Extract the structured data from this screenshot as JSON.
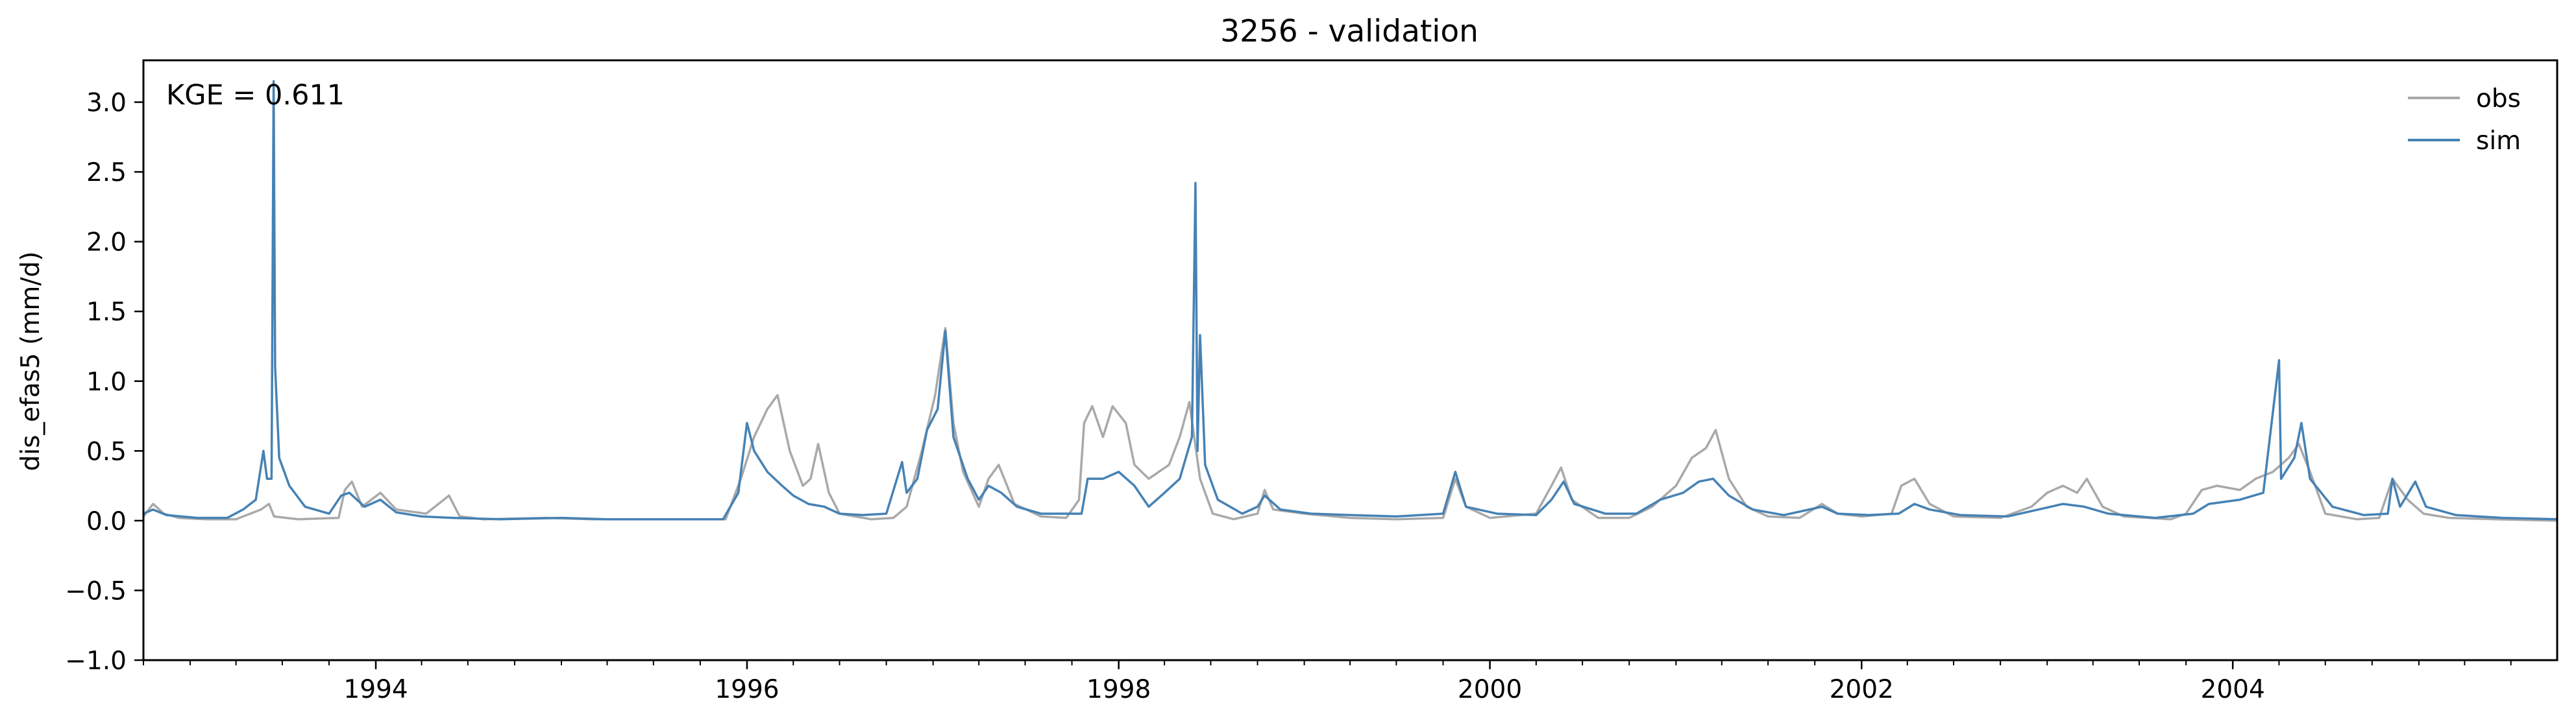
{
  "chart_data": {
    "type": "line",
    "title": "3256 - validation",
    "xlabel": "",
    "ylabel": "dis_efas5 (mm/d)",
    "annotation": "KGE = 0.611",
    "xlim": [
      "1992-10-01",
      "2005-09-30"
    ],
    "ylim": [
      -1.0,
      3.3
    ],
    "grid": false,
    "legend_position": "top-right",
    "x_ticks": [
      {
        "date": "1994-01-01",
        "label": "1994"
      },
      {
        "date": "1996-01-01",
        "label": "1996"
      },
      {
        "date": "1998-01-01",
        "label": "1998"
      },
      {
        "date": "2000-01-01",
        "label": "2000"
      },
      {
        "date": "2002-01-01",
        "label": "2002"
      },
      {
        "date": "2004-01-01",
        "label": "2004"
      }
    ],
    "y_ticks": [
      {
        "value": 3.0,
        "label": "3.0"
      },
      {
        "value": 2.5,
        "label": "2.5"
      },
      {
        "value": 2.0,
        "label": "2.0"
      },
      {
        "value": 1.5,
        "label": "1.5"
      },
      {
        "value": 1.0,
        "label": "1.0"
      },
      {
        "value": 0.5,
        "label": "0.5"
      },
      {
        "value": 0.0,
        "label": "0.0"
      },
      {
        "value": -0.5,
        "label": "−0.5"
      },
      {
        "value": -1.0,
        "label": "−1.0"
      }
    ],
    "series": [
      {
        "name": "obs",
        "color": "#a9a9a9",
        "points": [
          [
            "1992-10-01",
            0.03
          ],
          [
            "1992-10-20",
            0.12
          ],
          [
            "1992-11-10",
            0.05
          ],
          [
            "1992-12-10",
            0.02
          ],
          [
            "1993-02-01",
            0.01
          ],
          [
            "1993-04-01",
            0.01
          ],
          [
            "1993-05-20",
            0.08
          ],
          [
            "1993-06-05",
            0.12
          ],
          [
            "1993-06-15",
            0.03
          ],
          [
            "1993-08-01",
            0.01
          ],
          [
            "1993-10-20",
            0.02
          ],
          [
            "1993-11-01",
            0.22
          ],
          [
            "1993-11-15",
            0.28
          ],
          [
            "1993-12-05",
            0.1
          ],
          [
            "1994-01-10",
            0.2
          ],
          [
            "1994-02-10",
            0.08
          ],
          [
            "1994-04-10",
            0.05
          ],
          [
            "1994-05-25",
            0.18
          ],
          [
            "1994-06-15",
            0.03
          ],
          [
            "1994-08-01",
            0.01
          ],
          [
            "1994-12-01",
            0.02
          ],
          [
            "1995-03-01",
            0.01
          ],
          [
            "1995-06-01",
            0.01
          ],
          [
            "1995-11-20",
            0.01
          ],
          [
            "1995-12-20",
            0.3
          ],
          [
            "1996-01-15",
            0.6
          ],
          [
            "1996-02-10",
            0.8
          ],
          [
            "1996-03-01",
            0.9
          ],
          [
            "1996-03-25",
            0.5
          ],
          [
            "1996-04-20",
            0.25
          ],
          [
            "1996-05-05",
            0.3
          ],
          [
            "1996-05-20",
            0.55
          ],
          [
            "1996-06-10",
            0.2
          ],
          [
            "1996-07-01",
            0.05
          ],
          [
            "1996-09-01",
            0.01
          ],
          [
            "1996-10-15",
            0.02
          ],
          [
            "1996-11-10",
            0.1
          ],
          [
            "1996-12-10",
            0.5
          ],
          [
            "1997-01-05",
            0.9
          ],
          [
            "1997-01-25",
            1.38
          ],
          [
            "1997-02-10",
            0.7
          ],
          [
            "1997-03-01",
            0.35
          ],
          [
            "1997-04-01",
            0.1
          ],
          [
            "1997-04-20",
            0.3
          ],
          [
            "1997-05-10",
            0.4
          ],
          [
            "1997-06-10",
            0.12
          ],
          [
            "1997-08-01",
            0.03
          ],
          [
            "1997-09-20",
            0.02
          ],
          [
            "1997-10-15",
            0.15
          ],
          [
            "1997-10-25",
            0.7
          ],
          [
            "1997-11-10",
            0.82
          ],
          [
            "1997-12-01",
            0.6
          ],
          [
            "1997-12-20",
            0.82
          ],
          [
            "1998-01-15",
            0.7
          ],
          [
            "1998-02-01",
            0.4
          ],
          [
            "1998-03-01",
            0.3
          ],
          [
            "1998-04-10",
            0.4
          ],
          [
            "1998-05-01",
            0.6
          ],
          [
            "1998-05-20",
            0.85
          ],
          [
            "1998-06-10",
            0.3
          ],
          [
            "1998-07-05",
            0.05
          ],
          [
            "1998-08-15",
            0.01
          ],
          [
            "1998-10-01",
            0.05
          ],
          [
            "1998-10-15",
            0.22
          ],
          [
            "1998-11-01",
            0.08
          ],
          [
            "1999-01-01",
            0.05
          ],
          [
            "1999-04-01",
            0.02
          ],
          [
            "1999-07-01",
            0.01
          ],
          [
            "1999-10-01",
            0.02
          ],
          [
            "1999-10-25",
            0.3
          ],
          [
            "1999-11-15",
            0.1
          ],
          [
            "2000-01-01",
            0.02
          ],
          [
            "2000-04-01",
            0.05
          ],
          [
            "2000-05-01",
            0.25
          ],
          [
            "2000-05-20",
            0.38
          ],
          [
            "2000-06-10",
            0.15
          ],
          [
            "2000-08-01",
            0.02
          ],
          [
            "2000-10-01",
            0.02
          ],
          [
            "2000-11-15",
            0.1
          ],
          [
            "2001-01-01",
            0.25
          ],
          [
            "2001-02-01",
            0.45
          ],
          [
            "2001-03-01",
            0.52
          ],
          [
            "2001-03-20",
            0.65
          ],
          [
            "2001-04-15",
            0.3
          ],
          [
            "2001-05-20",
            0.1
          ],
          [
            "2001-07-01",
            0.03
          ],
          [
            "2001-09-01",
            0.02
          ],
          [
            "2001-10-15",
            0.12
          ],
          [
            "2001-11-15",
            0.05
          ],
          [
            "2002-01-01",
            0.03
          ],
          [
            "2002-03-01",
            0.05
          ],
          [
            "2002-03-20",
            0.25
          ],
          [
            "2002-04-15",
            0.3
          ],
          [
            "2002-05-15",
            0.12
          ],
          [
            "2002-07-01",
            0.03
          ],
          [
            "2002-10-01",
            0.02
          ],
          [
            "2002-12-01",
            0.1
          ],
          [
            "2003-01-01",
            0.2
          ],
          [
            "2003-02-01",
            0.25
          ],
          [
            "2003-03-01",
            0.2
          ],
          [
            "2003-03-20",
            0.3
          ],
          [
            "2003-04-20",
            0.1
          ],
          [
            "2003-06-01",
            0.03
          ],
          [
            "2003-09-01",
            0.01
          ],
          [
            "2003-10-01",
            0.05
          ],
          [
            "2003-11-01",
            0.22
          ],
          [
            "2003-12-01",
            0.25
          ],
          [
            "2004-01-15",
            0.22
          ],
          [
            "2004-02-15",
            0.3
          ],
          [
            "2004-03-20",
            0.35
          ],
          [
            "2004-04-20",
            0.45
          ],
          [
            "2004-05-10",
            0.55
          ],
          [
            "2004-06-01",
            0.35
          ],
          [
            "2004-07-01",
            0.05
          ],
          [
            "2004-09-01",
            0.01
          ],
          [
            "2004-10-15",
            0.02
          ],
          [
            "2004-11-10",
            0.3
          ],
          [
            "2004-12-10",
            0.15
          ],
          [
            "2005-01-10",
            0.05
          ],
          [
            "2005-03-01",
            0.02
          ],
          [
            "2005-06-01",
            0.01
          ],
          [
            "2005-09-30",
            0.0
          ]
        ]
      },
      {
        "name": "sim",
        "color": "#4682b4",
        "points": [
          [
            "1992-10-01",
            0.05
          ],
          [
            "1992-10-20",
            0.08
          ],
          [
            "1992-11-15",
            0.04
          ],
          [
            "1993-01-15",
            0.02
          ],
          [
            "1993-03-15",
            0.02
          ],
          [
            "1993-04-15",
            0.08
          ],
          [
            "1993-05-10",
            0.15
          ],
          [
            "1993-05-25",
            0.5
          ],
          [
            "1993-06-01",
            0.3
          ],
          [
            "1993-06-10",
            0.3
          ],
          [
            "1993-06-14",
            3.15
          ],
          [
            "1993-06-17",
            1.1
          ],
          [
            "1993-06-25",
            0.45
          ],
          [
            "1993-07-15",
            0.25
          ],
          [
            "1993-08-15",
            0.1
          ],
          [
            "1993-10-01",
            0.05
          ],
          [
            "1993-10-25",
            0.18
          ],
          [
            "1993-11-10",
            0.2
          ],
          [
            "1993-12-10",
            0.1
          ],
          [
            "1994-01-10",
            0.15
          ],
          [
            "1994-02-10",
            0.06
          ],
          [
            "1994-04-01",
            0.03
          ],
          [
            "1994-06-01",
            0.02
          ],
          [
            "1994-09-01",
            0.01
          ],
          [
            "1995-01-01",
            0.02
          ],
          [
            "1995-04-01",
            0.01
          ],
          [
            "1995-08-01",
            0.01
          ],
          [
            "1995-11-15",
            0.01
          ],
          [
            "1995-12-15",
            0.2
          ],
          [
            "1996-01-01",
            0.7
          ],
          [
            "1996-01-15",
            0.5
          ],
          [
            "1996-02-10",
            0.35
          ],
          [
            "1996-03-10",
            0.25
          ],
          [
            "1996-04-01",
            0.18
          ],
          [
            "1996-05-01",
            0.12
          ],
          [
            "1996-06-01",
            0.1
          ],
          [
            "1996-07-01",
            0.05
          ],
          [
            "1996-08-15",
            0.04
          ],
          [
            "1996-10-01",
            0.05
          ],
          [
            "1996-11-01",
            0.42
          ],
          [
            "1996-11-10",
            0.2
          ],
          [
            "1996-12-01",
            0.3
          ],
          [
            "1996-12-20",
            0.65
          ],
          [
            "1997-01-10",
            0.8
          ],
          [
            "1997-01-25",
            1.36
          ],
          [
            "1997-02-10",
            0.6
          ],
          [
            "1997-03-10",
            0.3
          ],
          [
            "1997-04-01",
            0.15
          ],
          [
            "1997-04-20",
            0.25
          ],
          [
            "1997-05-15",
            0.2
          ],
          [
            "1997-06-15",
            0.1
          ],
          [
            "1997-08-01",
            0.05
          ],
          [
            "1997-09-20",
            0.05
          ],
          [
            "1997-10-20",
            0.05
          ],
          [
            "1997-11-01",
            0.3
          ],
          [
            "1997-12-01",
            0.3
          ],
          [
            "1998-01-01",
            0.35
          ],
          [
            "1998-02-01",
            0.25
          ],
          [
            "1998-03-01",
            0.1
          ],
          [
            "1998-04-01",
            0.2
          ],
          [
            "1998-05-01",
            0.3
          ],
          [
            "1998-05-25",
            0.6
          ],
          [
            "1998-06-01",
            2.42
          ],
          [
            "1998-06-05",
            0.5
          ],
          [
            "1998-06-10",
            1.33
          ],
          [
            "1998-06-20",
            0.4
          ],
          [
            "1998-07-15",
            0.15
          ],
          [
            "1998-09-01",
            0.05
          ],
          [
            "1998-10-01",
            0.1
          ],
          [
            "1998-10-15",
            0.18
          ],
          [
            "1998-11-15",
            0.08
          ],
          [
            "1999-01-15",
            0.05
          ],
          [
            "1999-04-01",
            0.04
          ],
          [
            "1999-07-01",
            0.03
          ],
          [
            "1999-10-01",
            0.05
          ],
          [
            "1999-10-25",
            0.35
          ],
          [
            "1999-11-15",
            0.1
          ],
          [
            "2000-01-15",
            0.05
          ],
          [
            "2000-04-01",
            0.04
          ],
          [
            "2000-05-01",
            0.15
          ],
          [
            "2000-05-25",
            0.28
          ],
          [
            "2000-06-15",
            0.12
          ],
          [
            "2000-08-15",
            0.05
          ],
          [
            "2000-10-15",
            0.05
          ],
          [
            "2000-12-01",
            0.15
          ],
          [
            "2001-01-15",
            0.2
          ],
          [
            "2001-02-15",
            0.28
          ],
          [
            "2001-03-15",
            0.3
          ],
          [
            "2001-04-15",
            0.18
          ],
          [
            "2001-06-01",
            0.08
          ],
          [
            "2001-08-01",
            0.04
          ],
          [
            "2001-10-15",
            0.1
          ],
          [
            "2001-11-15",
            0.05
          ],
          [
            "2002-01-15",
            0.04
          ],
          [
            "2002-03-15",
            0.05
          ],
          [
            "2002-04-15",
            0.12
          ],
          [
            "2002-05-15",
            0.08
          ],
          [
            "2002-07-15",
            0.04
          ],
          [
            "2002-10-15",
            0.03
          ],
          [
            "2002-12-15",
            0.08
          ],
          [
            "2003-02-01",
            0.12
          ],
          [
            "2003-03-15",
            0.1
          ],
          [
            "2003-05-01",
            0.05
          ],
          [
            "2003-08-01",
            0.02
          ],
          [
            "2003-10-15",
            0.05
          ],
          [
            "2003-11-15",
            0.12
          ],
          [
            "2004-01-15",
            0.15
          ],
          [
            "2004-03-01",
            0.2
          ],
          [
            "2004-04-01",
            1.15
          ],
          [
            "2004-04-05",
            0.3
          ],
          [
            "2004-05-01",
            0.45
          ],
          [
            "2004-05-15",
            0.7
          ],
          [
            "2004-06-01",
            0.3
          ],
          [
            "2004-07-15",
            0.1
          ],
          [
            "2004-09-15",
            0.04
          ],
          [
            "2004-11-01",
            0.05
          ],
          [
            "2004-11-10",
            0.3
          ],
          [
            "2004-11-25",
            0.1
          ],
          [
            "2004-12-25",
            0.28
          ],
          [
            "2005-01-15",
            0.1
          ],
          [
            "2005-03-15",
            0.04
          ],
          [
            "2005-06-15",
            0.02
          ],
          [
            "2005-09-30",
            0.01
          ]
        ]
      }
    ]
  }
}
